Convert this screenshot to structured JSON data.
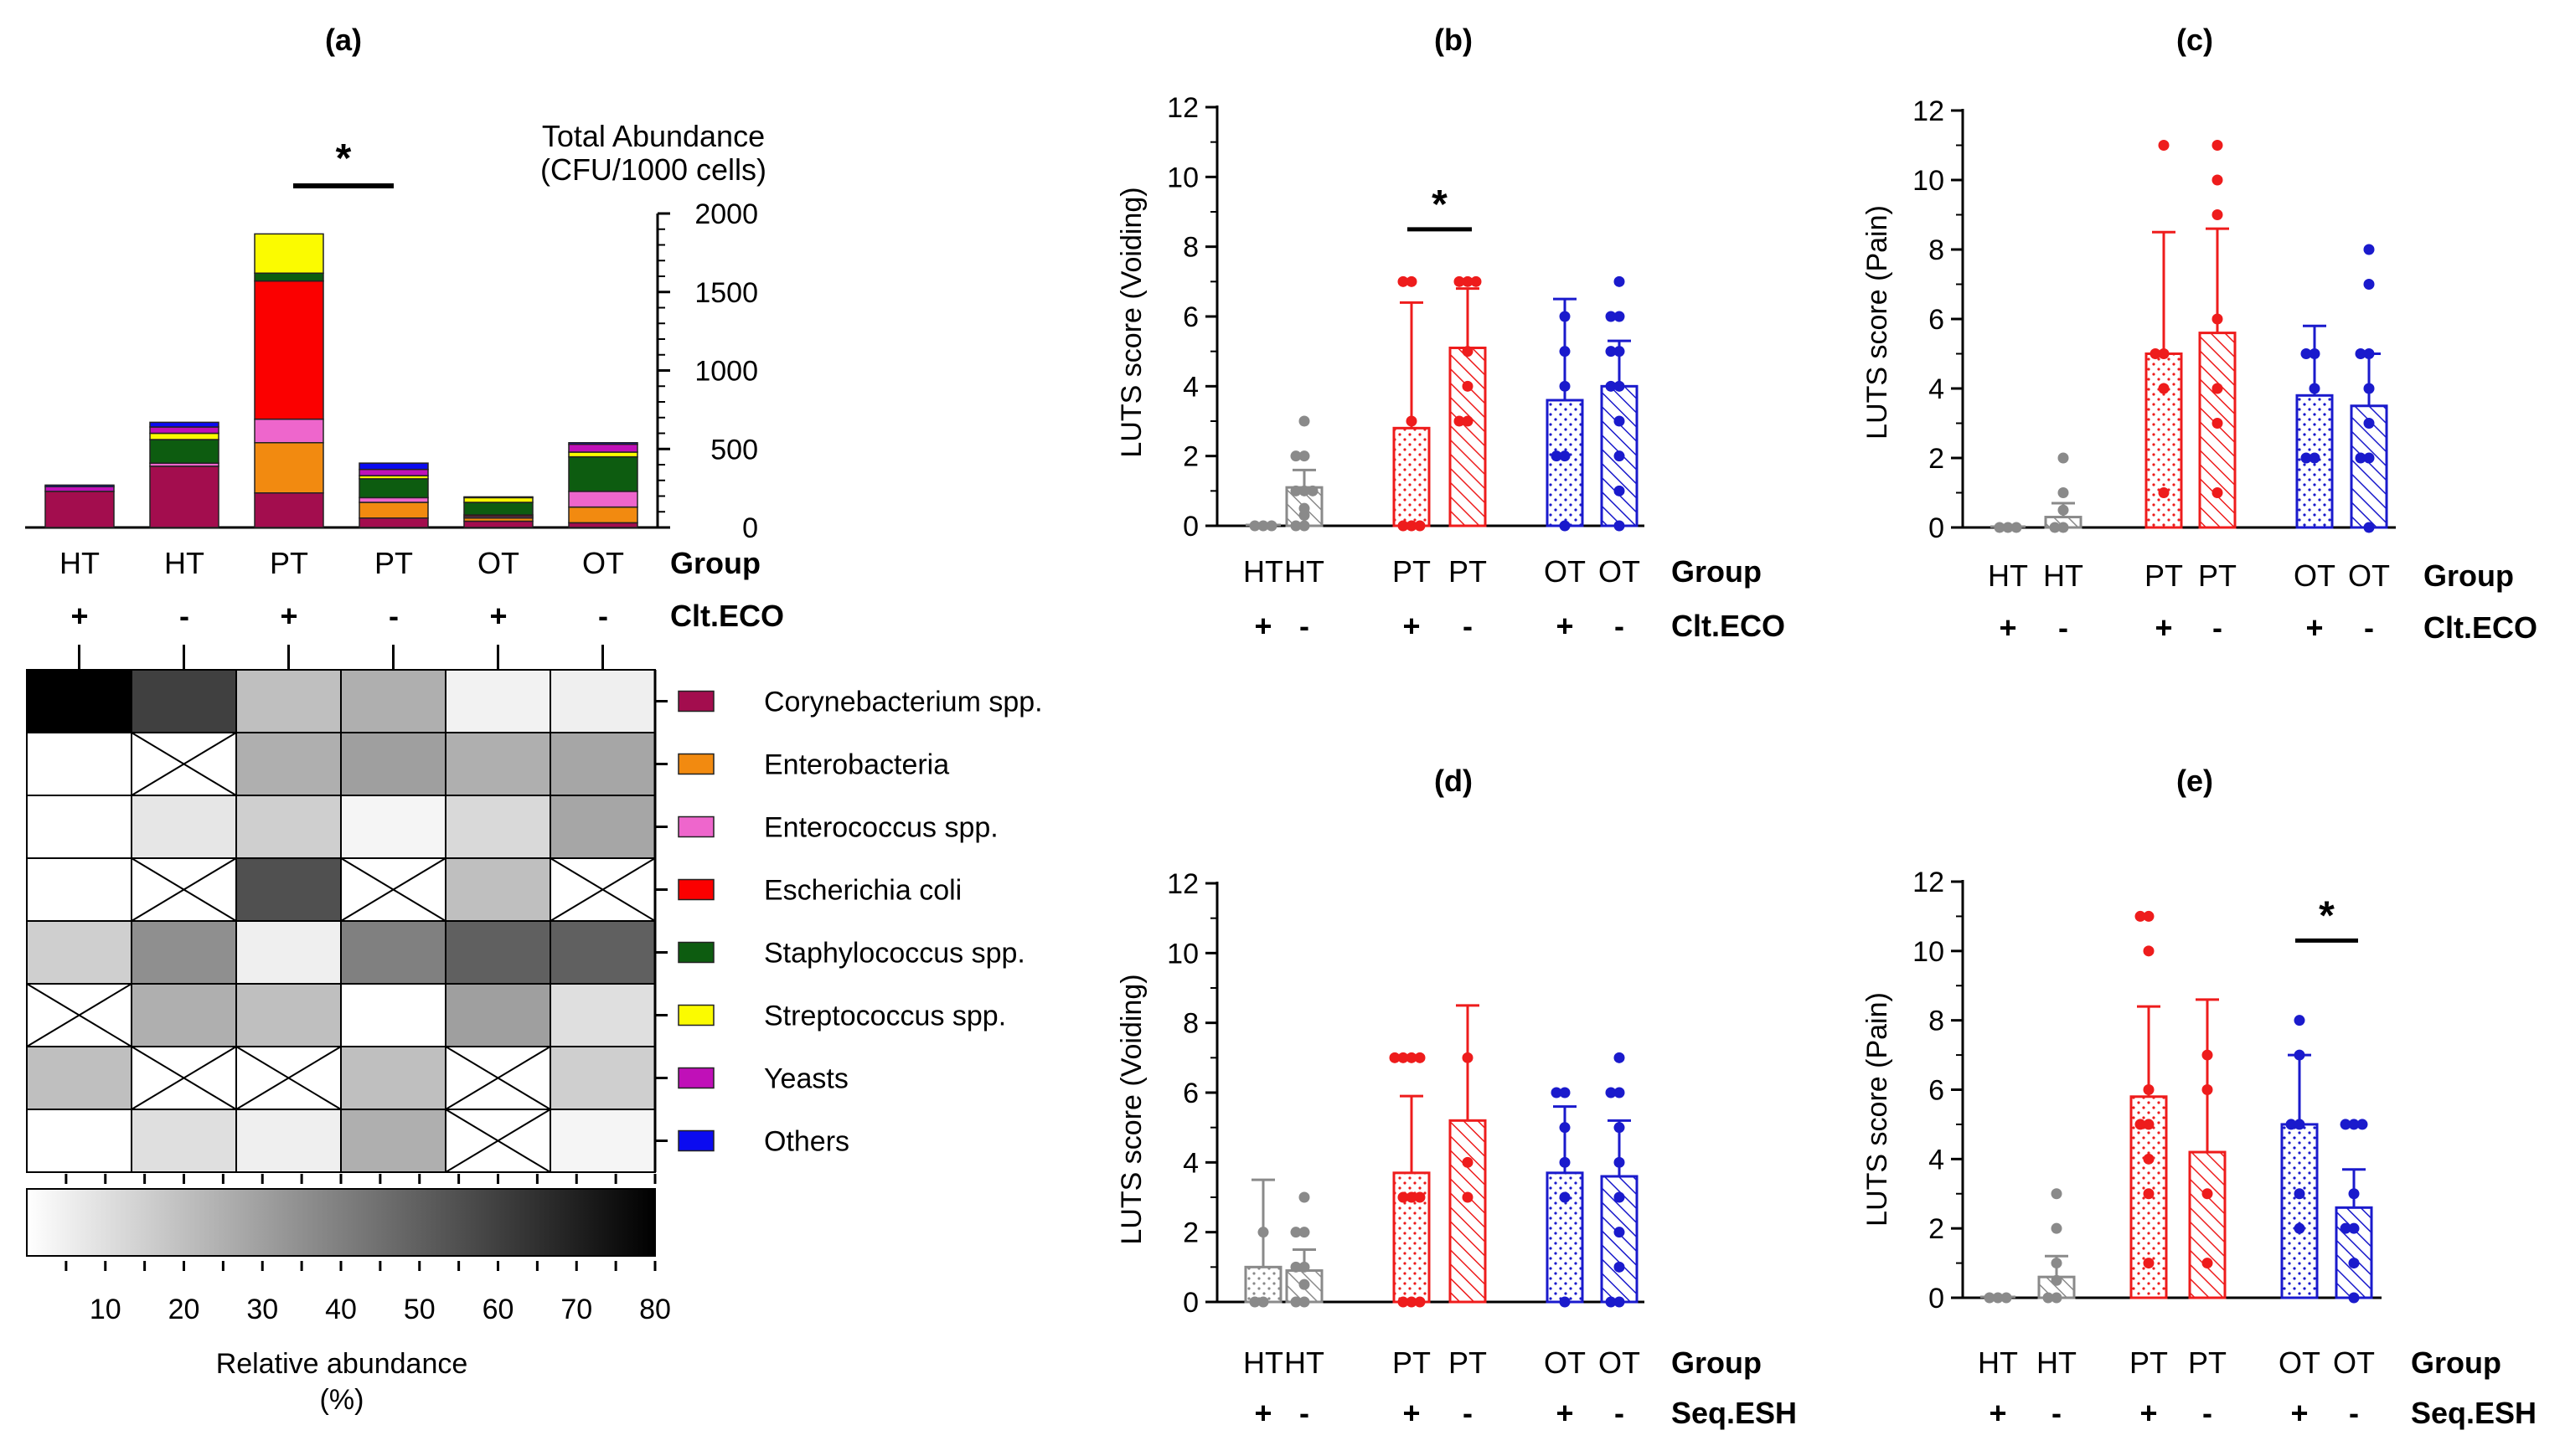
{
  "colors": {
    "HT": "#8a8a8a",
    "PT": "#ee1c1c",
    "OT": "#1a1acc",
    "Corynebacterium spp.": "#a30d4e",
    "Enterobacteria": "#f28a10",
    "Enterococcus spp.": "#ee66cc",
    "Escherichia coli": "#fb0000",
    "Staphylococcus spp.": "#0d5c10",
    "Streptococcus spp.": "#fbfb00",
    "Yeasts": "#c010b8",
    "Others": "#0b0bf0"
  },
  "chart_data": [
    {
      "id": "a",
      "panel_label": "(a)",
      "type": "bar",
      "stacked": true,
      "title_lines": [
        "Total Abundance",
        "(CFU/1000 cells)"
      ],
      "ylim": [
        0,
        2000
      ],
      "yticks": [
        0,
        500,
        1000,
        1500,
        2000
      ],
      "row_labels": [
        "Group",
        "Clt.ECO"
      ],
      "categories": [
        "HT",
        "HT",
        "PT",
        "PT",
        "OT",
        "OT"
      ],
      "signs": [
        "+",
        "-",
        "+",
        "-",
        "+",
        "-"
      ],
      "significance": {
        "label": "*",
        "from": 2,
        "to": 3
      },
      "series": [
        {
          "name": "Corynebacterium spp.",
          "values": [
            230,
            390,
            220,
            60,
            40,
            30
          ]
        },
        {
          "name": "Enterobacteria",
          "values": [
            0,
            0,
            320,
            100,
            20,
            100
          ]
        },
        {
          "name": "Enterococcus spp.",
          "values": [
            0,
            20,
            150,
            30,
            10,
            100
          ]
        },
        {
          "name": "Escherichia coli",
          "values": [
            0,
            0,
            880,
            0,
            10,
            0
          ]
        },
        {
          "name": "Staphylococcus spp.",
          "values": [
            0,
            150,
            50,
            120,
            80,
            220
          ]
        },
        {
          "name": "Streptococcus spp.",
          "values": [
            0,
            40,
            250,
            20,
            30,
            30
          ]
        },
        {
          "name": "Yeasts",
          "values": [
            30,
            40,
            0,
            40,
            0,
            50
          ]
        },
        {
          "name": "Others",
          "values": [
            10,
            30,
            0,
            40,
            5,
            10
          ]
        }
      ]
    },
    {
      "id": "a-heatmap",
      "type": "heatmap",
      "rows": [
        "Corynebacterium spp.",
        "Enterobacteria",
        "Enterococcus spp.",
        "Escherichia coli",
        "Staphylococcus spp.",
        "Streptococcus spp.",
        "Yeasts",
        "Others"
      ],
      "columns": [
        "HT +",
        "HT -",
        "PT +",
        "PT -",
        "OT +",
        "OT -"
      ],
      "values": [
        [
          80,
          60,
          20,
          25,
          4,
          5
        ],
        [
          0,
          null,
          25,
          30,
          25,
          28
        ],
        [
          0,
          8,
          15,
          3,
          12,
          28
        ],
        [
          0,
          null,
          55,
          null,
          20,
          null
        ],
        [
          15,
          35,
          5,
          40,
          50,
          50
        ],
        [
          null,
          25,
          20,
          0,
          30,
          10
        ],
        [
          20,
          null,
          null,
          20,
          null,
          15
        ],
        [
          0,
          10,
          5,
          25,
          null,
          3
        ]
      ],
      "colorbar": {
        "min": 0,
        "max": 80,
        "ticks": [
          10,
          20,
          30,
          40,
          50,
          60,
          70,
          80
        ],
        "label_lines": [
          "Relative abundance",
          "(%)"
        ]
      }
    },
    {
      "id": "b",
      "panel_label": "(b)",
      "type": "bar",
      "ylabel": "LUTS score (Voiding)",
      "ylim": [
        0,
        12
      ],
      "yticks": [
        0,
        2,
        4,
        6,
        8,
        10,
        12
      ],
      "row_labels": [
        "Group",
        "Clt.ECO"
      ],
      "categories": [
        "HT",
        "HT",
        "PT",
        "PT",
        "OT",
        "OT"
      ],
      "signs": [
        "+",
        "-",
        "+",
        "-",
        "+",
        "-"
      ],
      "means": [
        0,
        1.1,
        2.8,
        5.1,
        3.6,
        4.0
      ],
      "sd": [
        0,
        0.5,
        3.6,
        1.7,
        2.9,
        1.3
      ],
      "points": [
        [
          0,
          0,
          0
        ],
        [
          0,
          0,
          0.3,
          0.5,
          1,
          1,
          1,
          2,
          2,
          3
        ],
        [
          0,
          0,
          0,
          3,
          7,
          7
        ],
        [
          3,
          3,
          4,
          5,
          7,
          7,
          7
        ],
        [
          0,
          2,
          2,
          4,
          5,
          6
        ],
        [
          0,
          1,
          2,
          3,
          4,
          4,
          5,
          5,
          6,
          6,
          7
        ]
      ],
      "significance": {
        "label": "*",
        "from": 2,
        "to": 3,
        "y": 8.5
      }
    },
    {
      "id": "c",
      "panel_label": "(c)",
      "type": "bar",
      "ylabel": "LUTS score (Pain)",
      "ylim": [
        0,
        12
      ],
      "yticks": [
        0,
        2,
        4,
        6,
        8,
        10,
        12
      ],
      "row_labels": [
        "Group",
        "Clt.ECO"
      ],
      "categories": [
        "HT",
        "HT",
        "PT",
        "PT",
        "OT",
        "OT"
      ],
      "signs": [
        "+",
        "-",
        "+",
        "-",
        "+",
        "-"
      ],
      "means": [
        0,
        0.3,
        5.0,
        5.6,
        3.8,
        3.5
      ],
      "sd": [
        0,
        0.4,
        3.5,
        3.0,
        2.0,
        1.5
      ],
      "points": [
        [
          0,
          0,
          0
        ],
        [
          0,
          0,
          0.5,
          1,
          2
        ],
        [
          1,
          4,
          5,
          5,
          11
        ],
        [
          1,
          3,
          4,
          6,
          9,
          10,
          11
        ],
        [
          2,
          2,
          4,
          5,
          5
        ],
        [
          0,
          2,
          2,
          3,
          4,
          5,
          5,
          7,
          8
        ]
      ],
      "significance": null
    },
    {
      "id": "d",
      "panel_label": "(d)",
      "type": "bar",
      "ylabel": "LUTS score (Voiding)",
      "ylim": [
        0,
        12
      ],
      "yticks": [
        0,
        2,
        4,
        6,
        8,
        10,
        12
      ],
      "row_labels": [
        "Group",
        "Seq.ESH"
      ],
      "categories": [
        "HT",
        "HT",
        "PT",
        "PT",
        "OT",
        "OT"
      ],
      "signs": [
        "+",
        "-",
        "+",
        "-",
        "+",
        "-"
      ],
      "means": [
        1.0,
        0.9,
        3.7,
        5.2,
        3.7,
        3.6
      ],
      "sd": [
        2.5,
        0.6,
        2.2,
        3.3,
        1.9,
        1.6
      ],
      "points": [
        [
          0,
          0,
          2
        ],
        [
          0,
          0,
          0.5,
          1,
          1,
          2,
          2,
          3
        ],
        [
          0,
          0,
          0,
          3,
          3,
          3,
          7,
          7,
          7,
          7
        ],
        [
          3,
          4,
          7
        ],
        [
          0,
          3,
          4,
          5,
          6,
          6
        ],
        [
          0,
          0,
          1,
          2,
          3,
          4,
          5,
          6,
          6,
          7
        ]
      ],
      "significance": null
    },
    {
      "id": "e",
      "panel_label": "(e)",
      "type": "bar",
      "ylabel": "LUTS score (Pain)",
      "ylim": [
        0,
        12
      ],
      "yticks": [
        0,
        2,
        4,
        6,
        8,
        10,
        12
      ],
      "row_labels": [
        "Group",
        "Seq.ESH"
      ],
      "categories": [
        "HT",
        "HT",
        "PT",
        "PT",
        "OT",
        "OT"
      ],
      "signs": [
        "+",
        "-",
        "+",
        "-",
        "+",
        "-"
      ],
      "means": [
        0,
        0.6,
        5.8,
        4.2,
        5.0,
        2.6
      ],
      "sd": [
        0,
        0.6,
        2.6,
        4.4,
        2.0,
        1.1
      ],
      "points": [
        [
          0,
          0,
          0
        ],
        [
          0,
          0,
          0.5,
          1,
          2,
          3
        ],
        [
          1,
          3,
          4,
          5,
          5,
          6,
          10,
          11,
          11
        ],
        [
          1,
          3,
          6,
          7
        ],
        [
          2,
          3,
          5,
          5,
          7,
          8
        ],
        [
          0,
          1,
          2,
          2,
          3,
          5,
          5,
          5
        ]
      ],
      "significance": {
        "label": "*",
        "from": 4,
        "to": 5,
        "y": 10.3
      }
    }
  ]
}
